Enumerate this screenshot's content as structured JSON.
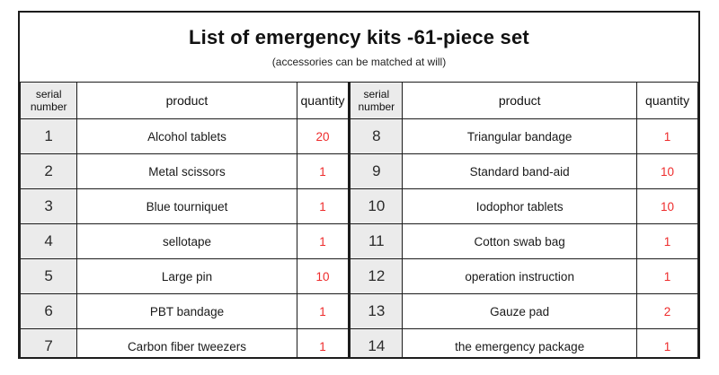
{
  "title": "List of emergency kits -61-piece set",
  "subtitle": "(accessories can be matched at will)",
  "table": {
    "headers": {
      "serial": "serial number",
      "product": "product",
      "quantity": "quantity"
    },
    "rows": [
      {
        "l_serial": "1",
        "l_product": "Alcohol tablets",
        "l_qty": "20",
        "r_serial": "8",
        "r_product": "Triangular bandage",
        "r_qty": "1"
      },
      {
        "l_serial": "2",
        "l_product": "Metal scissors",
        "l_qty": "1",
        "r_serial": "9",
        "r_product": "Standard band-aid",
        "r_qty": "10"
      },
      {
        "l_serial": "3",
        "l_product": "Blue tourniquet",
        "l_qty": "1",
        "r_serial": "10",
        "r_product": "Iodophor tablets",
        "r_qty": "10"
      },
      {
        "l_serial": "4",
        "l_product": "sellotape",
        "l_qty": "1",
        "r_serial": "11",
        "r_product": "Cotton swab bag",
        "r_qty": "1"
      },
      {
        "l_serial": "5",
        "l_product": "Large pin",
        "l_qty": "10",
        "r_serial": "12",
        "r_product": "operation instruction",
        "r_qty": "1"
      },
      {
        "l_serial": "6",
        "l_product": "PBT bandage",
        "l_qty": "1",
        "r_serial": "13",
        "r_product": "Gauze pad",
        "r_qty": "2"
      },
      {
        "l_serial": "7",
        "l_product": "Carbon fiber tweezers",
        "l_qty": "1",
        "r_serial": "14",
        "r_product": "the emergency package",
        "r_qty": "1"
      }
    ]
  },
  "colors": {
    "quantity_red": "#ee2c2c",
    "serial_bg": "#ebebeb",
    "border": "#1c1c1c"
  }
}
